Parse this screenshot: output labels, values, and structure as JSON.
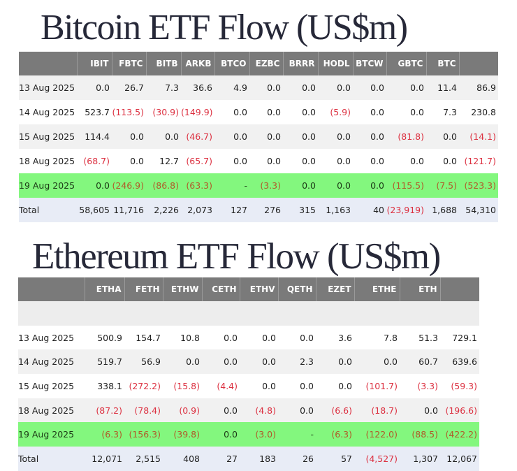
{
  "btc": {
    "title": "Bitcoin ETF Flow (US$m)",
    "columns": [
      "",
      "IBIT",
      "FBTC",
      "BITB",
      "ARKB",
      "BTCO",
      "EZBC",
      "BRRR",
      "HODL",
      "BTCW",
      "GBTC",
      "BTC",
      ""
    ],
    "rows": [
      [
        "13 Aug 2025",
        "0.0",
        "26.7",
        "7.3",
        "36.6",
        "4.9",
        "0.0",
        "0.0",
        "0.0",
        "0.0",
        "0.0",
        "11.4",
        "86.9"
      ],
      [
        "14 Aug 2025",
        "523.7",
        "(113.5)",
        "(30.9)",
        "(149.9)",
        "0.0",
        "0.0",
        "0.0",
        "(5.9)",
        "0.0",
        "0.0",
        "7.3",
        "230.8"
      ],
      [
        "15 Aug 2025",
        "114.4",
        "0.0",
        "0.0",
        "(46.7)",
        "0.0",
        "0.0",
        "0.0",
        "0.0",
        "0.0",
        "(81.8)",
        "0.0",
        "(14.1)"
      ],
      [
        "18 Aug 2025",
        "(68.7)",
        "0.0",
        "12.7",
        "(65.7)",
        "0.0",
        "0.0",
        "0.0",
        "0.0",
        "0.0",
        "0.0",
        "0.0",
        "(121.7)"
      ],
      [
        "19 Aug 2025",
        "0.0",
        "(246.9)",
        "(86.8)",
        "(63.3)",
        "-",
        "(3.3)",
        "0.0",
        "0.0",
        "0.0",
        "(115.5)",
        "(7.5)",
        "(523.3)"
      ],
      [
        "Total",
        "58,605",
        "11,716",
        "2,226",
        "2,073",
        "127",
        "276",
        "315",
        "1,163",
        "40",
        "(23,919)",
        "1,688",
        "54,310"
      ]
    ]
  },
  "eth": {
    "title": "Ethereum ETF Flow (US$m)",
    "columns": [
      "",
      "ETHA",
      "FETH",
      "ETHW",
      "CETH",
      "ETHV",
      "QETH",
      "EZET",
      "ETHE",
      "ETH",
      ""
    ],
    "rows": [
      [
        "13 Aug 2025",
        "500.9",
        "154.7",
        "10.8",
        "0.0",
        "0.0",
        "0.0",
        "3.6",
        "7.8",
        "51.3",
        "729.1"
      ],
      [
        "14 Aug 2025",
        "519.7",
        "56.9",
        "0.0",
        "0.0",
        "0.0",
        "2.3",
        "0.0",
        "0.0",
        "60.7",
        "639.6"
      ],
      [
        "15 Aug 2025",
        "338.1",
        "(272.2)",
        "(15.8)",
        "(4.4)",
        "0.0",
        "0.0",
        "0.0",
        "(101.7)",
        "(3.3)",
        "(59.3)"
      ],
      [
        "18 Aug 2025",
        "(87.2)",
        "(78.4)",
        "(0.9)",
        "0.0",
        "(4.8)",
        "0.0",
        "(6.6)",
        "(18.7)",
        "0.0",
        "(196.6)"
      ],
      [
        "19 Aug 2025",
        "(6.3)",
        "(156.3)",
        "(39.8)",
        "0.0",
        "(3.0)",
        "-",
        "(6.3)",
        "(122.0)",
        "(88.5)",
        "(422.2)"
      ],
      [
        "Total",
        "12,071",
        "2,515",
        "408",
        "27",
        "183",
        "26",
        "57",
        "(4,527)",
        "1,307",
        "12,067"
      ]
    ]
  },
  "colors": {
    "header_bg": "#7a7a7a",
    "highlight_row": "#83f77e",
    "total_row": "#e8ecf6",
    "negative": "#dc3040",
    "negative_on_highlight": "#b05a2a",
    "title": "#262838"
  }
}
